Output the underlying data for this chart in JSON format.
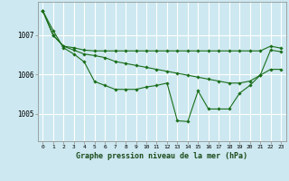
{
  "background_color": "#cde8f0",
  "grid_color": "#ffffff",
  "line_color": "#1a6e1a",
  "marker_color": "#1a6e1a",
  "title": "Graphe pression niveau de la mer (hPa)",
  "xlim": [
    -0.5,
    23.5
  ],
  "ylim": [
    1004.3,
    1007.85
  ],
  "xticks": [
    0,
    1,
    2,
    3,
    4,
    5,
    6,
    7,
    8,
    9,
    10,
    11,
    12,
    13,
    14,
    15,
    16,
    17,
    18,
    19,
    20,
    21,
    22,
    23
  ],
  "yticks": [
    1005,
    1006,
    1007
  ],
  "series1": [
    1007.62,
    1007.0,
    1006.72,
    1006.68,
    1006.62,
    1006.6,
    1006.6,
    1006.6,
    1006.6,
    1006.6,
    1006.6,
    1006.6,
    1006.6,
    1006.6,
    1006.6,
    1006.6,
    1006.6,
    1006.6,
    1006.6,
    1006.6,
    1006.6,
    1006.6,
    1006.72,
    1006.67
  ],
  "series2": [
    1007.62,
    1007.0,
    1006.72,
    1006.62,
    1006.52,
    1006.48,
    1006.43,
    1006.33,
    1006.28,
    1006.23,
    1006.18,
    1006.13,
    1006.08,
    1006.03,
    1005.98,
    1005.93,
    1005.88,
    1005.83,
    1005.78,
    1005.78,
    1005.83,
    1005.98,
    1006.13,
    1006.13
  ],
  "series3": [
    1007.62,
    1007.12,
    1006.68,
    1006.52,
    1006.32,
    1005.82,
    1005.72,
    1005.62,
    1005.62,
    1005.62,
    1005.68,
    1005.72,
    1005.78,
    1004.82,
    1004.8,
    1005.58,
    1005.12,
    1005.12,
    1005.12,
    1005.52,
    1005.72,
    1005.98,
    1006.62,
    1006.58
  ]
}
